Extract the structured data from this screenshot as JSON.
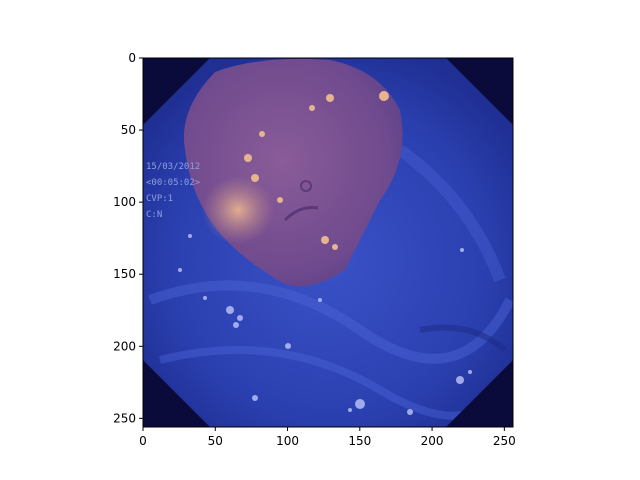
{
  "figure": {
    "x_ticks": [
      "0",
      "50",
      "100",
      "150",
      "200",
      "250"
    ],
    "y_ticks": [
      "0",
      "50",
      "100",
      "150",
      "200",
      "250"
    ],
    "xlim": [
      0,
      256
    ],
    "ylim": [
      256,
      0
    ],
    "overlay_text": {
      "date": "15/03/2012",
      "time": "<00:05:02>",
      "cvp": "CVP:1",
      "mode": "C:N"
    }
  },
  "colors": {
    "background_dark": "#0a0b3a",
    "tissue_blue": "#3046b8",
    "lesion_purple": "#7a5090",
    "lesion_highlight": "#d9a58a"
  }
}
